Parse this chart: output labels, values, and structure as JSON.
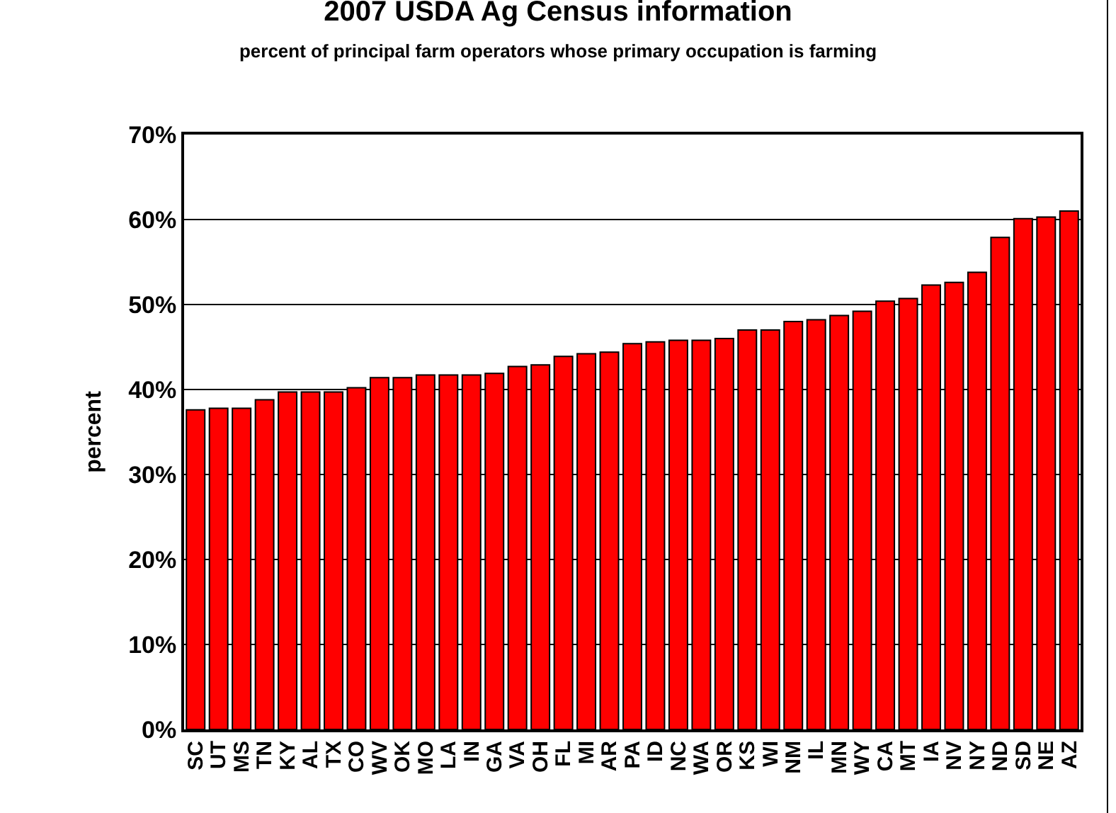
{
  "chart_data": {
    "type": "bar",
    "title": "2007 USDA Ag Census information",
    "subtitle": "percent of principal farm operators whose primary occupation is farming",
    "ylabel": "percent",
    "categories": [
      "SC",
      "UT",
      "MS",
      "TN",
      "KY",
      "AL",
      "TX",
      "CO",
      "WV",
      "OK",
      "MO",
      "LA",
      "IN",
      "GA",
      "VA",
      "OH",
      "FL",
      "MI",
      "AR",
      "PA",
      "ID",
      "NC",
      "WA",
      "OR",
      "KS",
      "WI",
      "NM",
      "IL",
      "MN",
      "WY",
      "CA",
      "MT",
      "IA",
      "NV",
      "NY",
      "ND",
      "SD",
      "NE",
      "AZ"
    ],
    "values": [
      37.6,
      37.8,
      37.8,
      38.8,
      39.7,
      39.7,
      39.7,
      40.2,
      41.4,
      41.4,
      41.7,
      41.7,
      41.7,
      41.9,
      42.7,
      42.9,
      43.9,
      44.2,
      44.4,
      45.4,
      45.6,
      45.8,
      45.8,
      46.0,
      47.0,
      47.0,
      48.0,
      48.2,
      48.7,
      49.2,
      50.4,
      50.7,
      52.3,
      52.6,
      53.8,
      57.9,
      60.1,
      60.3,
      61.0
    ],
    "color": "#ff0000",
    "ylim": [
      0,
      70
    ],
    "yticks": [
      {
        "value": 0,
        "label": "0%"
      },
      {
        "value": 10,
        "label": "10%"
      },
      {
        "value": 20,
        "label": "20%"
      },
      {
        "value": 30,
        "label": "30%"
      },
      {
        "value": 40,
        "label": "40%"
      },
      {
        "value": 50,
        "label": "50%"
      },
      {
        "value": 60,
        "label": "60%"
      },
      {
        "value": 70,
        "label": "70%"
      }
    ],
    "grid": "y",
    "legend": false
  }
}
